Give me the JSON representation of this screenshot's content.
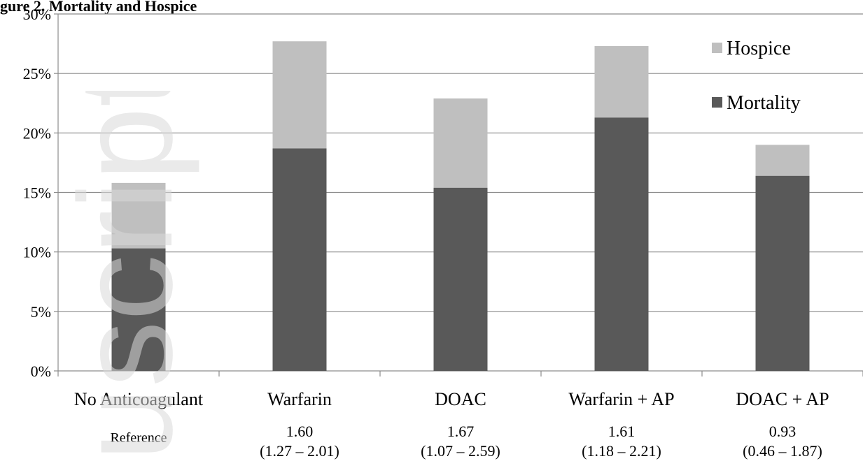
{
  "page_title": "gure 2. Mortality and Hospice",
  "watermark": "uscript",
  "chart_data": {
    "type": "bar",
    "stacked": true,
    "categories": [
      "No Anticoagulant",
      "Warfarin",
      "DOAC",
      "Warfarin + AP",
      "DOAC + AP"
    ],
    "series": [
      {
        "name": "Mortality",
        "color": "#595959",
        "values": [
          10.3,
          18.7,
          15.4,
          21.3,
          16.4
        ]
      },
      {
        "name": "Hospice",
        "color": "#bfbfbf",
        "values": [
          5.5,
          9.0,
          7.5,
          6.0,
          2.6
        ]
      }
    ],
    "ylim": [
      0,
      30
    ],
    "yticks": [
      "0%",
      "5%",
      "10%",
      "15%",
      "20%",
      "25%",
      "30%"
    ],
    "grid": true,
    "legend_position": "top-right",
    "estimates": [
      {
        "value": "Reference",
        "ci": ""
      },
      {
        "value": "1.60",
        "ci": "(1.27 – 2.01)"
      },
      {
        "value": "1.67",
        "ci": "(1.07 – 2.59)"
      },
      {
        "value": "1.61",
        "ci": "(1.18 – 2.21)"
      },
      {
        "value": "0.93",
        "ci": "(0.46 – 1.87)"
      }
    ]
  }
}
